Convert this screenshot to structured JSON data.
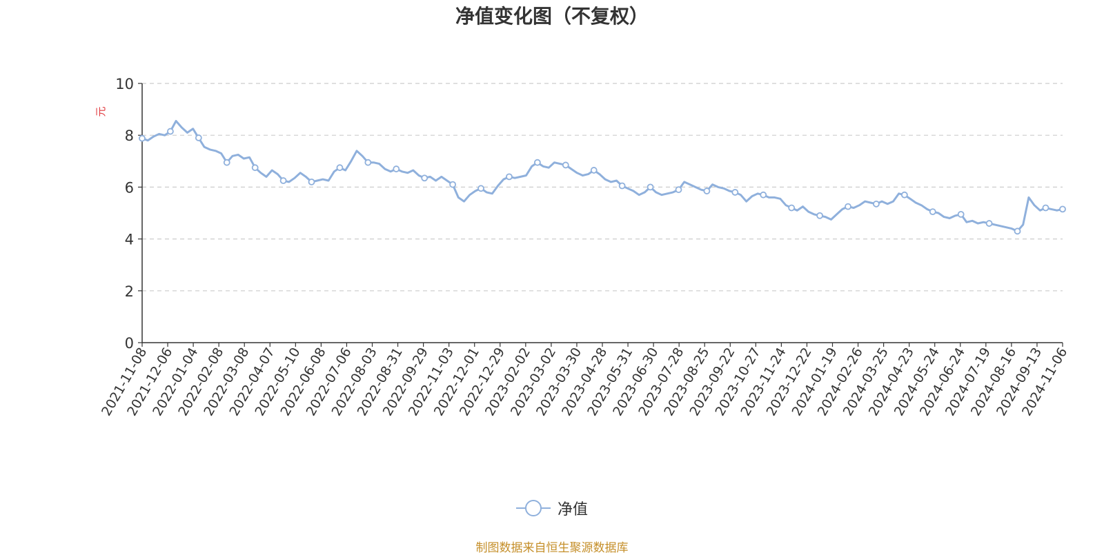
{
  "chart_data": {
    "type": "line",
    "title": "净值变化图（不复权）",
    "ylabel": "元",
    "ylim": [
      0,
      10
    ],
    "yticks": [
      0,
      2,
      4,
      6,
      8,
      10
    ],
    "grid": true,
    "legend_position": "bottom-center",
    "x_tick_labels": [
      "2021-11-08",
      "2021-12-06",
      "2022-01-04",
      "2022-02-08",
      "2022-03-08",
      "2022-04-07",
      "2022-05-10",
      "2022-06-08",
      "2022-07-06",
      "2022-08-03",
      "2022-08-31",
      "2022-09-29",
      "2022-11-03",
      "2022-12-01",
      "2022-12-29",
      "2023-02-02",
      "2023-03-02",
      "2023-03-30",
      "2023-04-28",
      "2023-05-31",
      "2023-06-30",
      "2023-07-28",
      "2023-08-25",
      "2023-09-22",
      "2023-10-27",
      "2023-11-24",
      "2023-12-22",
      "2024-01-19",
      "2024-02-26",
      "2024-03-25",
      "2024-04-23",
      "2024-05-24",
      "2024-06-24",
      "2024-07-19",
      "2024-08-16",
      "2024-09-13",
      "2024-11-06"
    ],
    "series": [
      {
        "name": "净值",
        "color": "#8fb0dc",
        "values": [
          7.88,
          7.8,
          7.95,
          8.05,
          8.0,
          8.15,
          8.55,
          8.3,
          8.1,
          8.25,
          7.9,
          7.55,
          7.45,
          7.4,
          7.3,
          6.95,
          7.2,
          7.25,
          7.1,
          7.15,
          6.75,
          6.55,
          6.4,
          6.65,
          6.5,
          6.25,
          6.2,
          6.35,
          6.55,
          6.4,
          6.2,
          6.25,
          6.3,
          6.25,
          6.6,
          6.75,
          6.65,
          7.0,
          7.4,
          7.2,
          6.95,
          6.95,
          6.9,
          6.7,
          6.6,
          6.7,
          6.6,
          6.55,
          6.65,
          6.45,
          6.35,
          6.4,
          6.25,
          6.4,
          6.25,
          6.1,
          5.6,
          5.45,
          5.7,
          5.85,
          5.95,
          5.8,
          5.75,
          6.05,
          6.3,
          6.4,
          6.35,
          6.4,
          6.45,
          6.8,
          6.95,
          6.8,
          6.75,
          6.95,
          6.9,
          6.85,
          6.7,
          6.55,
          6.45,
          6.5,
          6.65,
          6.5,
          6.3,
          6.2,
          6.25,
          6.05,
          5.95,
          5.85,
          5.7,
          5.8,
          6.0,
          5.8,
          5.7,
          5.75,
          5.8,
          5.9,
          6.2,
          6.1,
          6.0,
          5.9,
          5.85,
          6.1,
          6.0,
          5.95,
          5.85,
          5.8,
          5.7,
          5.45,
          5.65,
          5.75,
          5.7,
          5.6,
          5.6,
          5.55,
          5.3,
          5.2,
          5.1,
          5.25,
          5.05,
          4.95,
          4.9,
          4.85,
          4.75,
          4.95,
          5.15,
          5.25,
          5.2,
          5.3,
          5.45,
          5.4,
          5.35,
          5.45,
          5.35,
          5.45,
          5.75,
          5.7,
          5.55,
          5.4,
          5.3,
          5.15,
          5.05,
          5.0,
          4.85,
          4.8,
          4.9,
          4.95,
          4.65,
          4.7,
          4.6,
          4.65,
          4.6,
          4.55,
          4.5,
          4.45,
          4.4,
          4.3,
          4.55,
          5.6,
          5.3,
          5.1,
          5.2,
          5.15,
          5.1,
          5.15
        ]
      }
    ]
  },
  "legend": {
    "label": "净值"
  },
  "source_note": "制图数据来自恒生聚源数据库"
}
